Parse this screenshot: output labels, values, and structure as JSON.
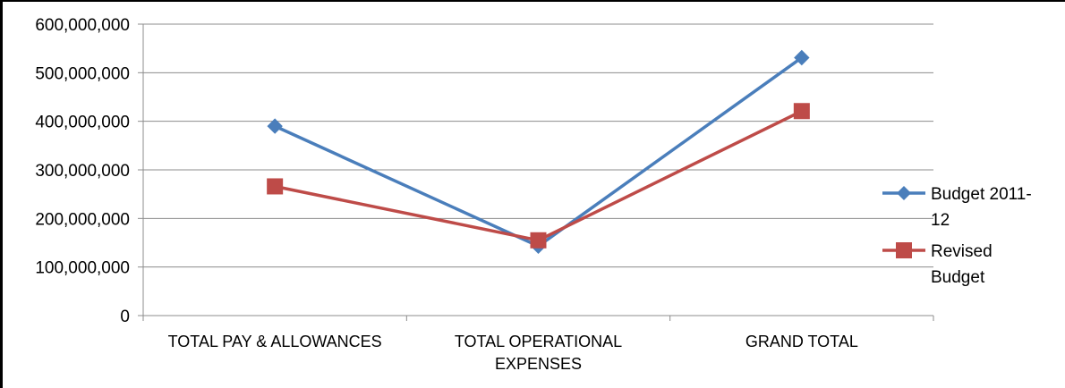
{
  "chart_data": {
    "type": "line",
    "title": "",
    "xlabel": "",
    "ylabel": "",
    "categories": [
      [
        "TOTAL PAY & ALLOWANCES"
      ],
      [
        "TOTAL OPERATIONAL",
        "EXPENSES"
      ],
      [
        "GRAND TOTAL"
      ]
    ],
    "y_ticks": [
      {
        "value": 0,
        "label": "0"
      },
      {
        "value": 100000000,
        "label": "100,000,000"
      },
      {
        "value": 200000000,
        "label": "200,000,000"
      },
      {
        "value": 300000000,
        "label": "300,000,000"
      },
      {
        "value": 400000000,
        "label": "400,000,000"
      },
      {
        "value": 500000000,
        "label": "500,000,000"
      },
      {
        "value": 600000000,
        "label": "600,000,000"
      }
    ],
    "ylim": [
      0,
      600000000
    ],
    "grid": true,
    "legend_position": "right",
    "series": [
      {
        "name": [
          "Budget 2011-",
          "12"
        ],
        "color": "#4a7ebb",
        "marker": "diamond",
        "values": [
          390000000,
          143000000,
          531000000
        ]
      },
      {
        "name": [
          "Revised",
          "Budget"
        ],
        "color": "#be4b48",
        "marker": "square",
        "values": [
          266000000,
          155000000,
          421000000
        ]
      }
    ]
  }
}
